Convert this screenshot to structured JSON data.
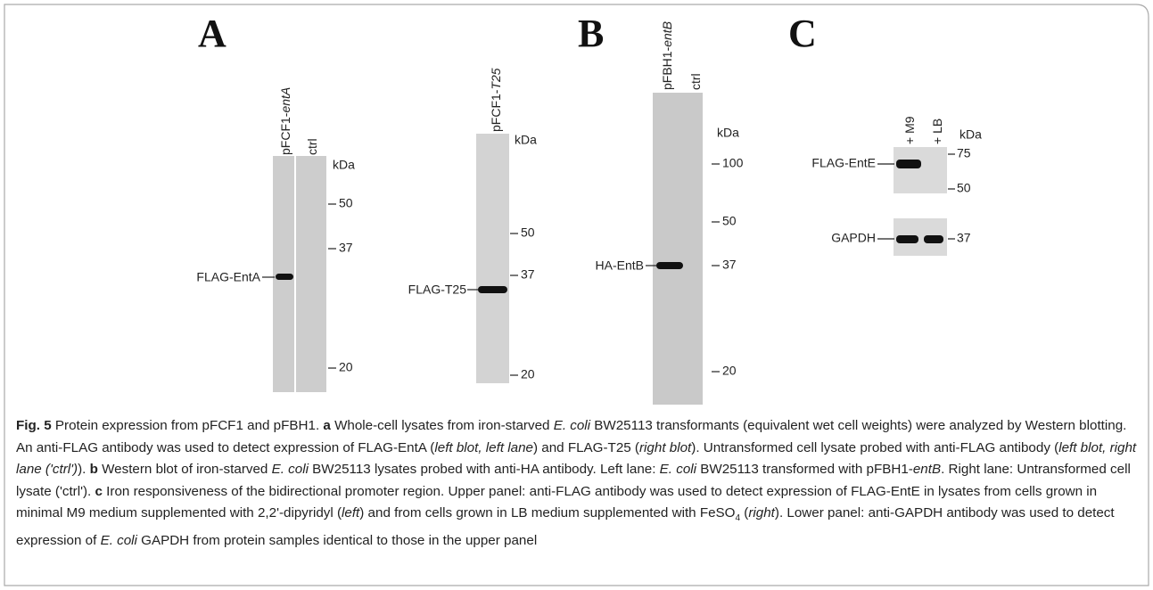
{
  "panel_a": {
    "label": "A",
    "left_blot": {
      "lanes": [
        {
          "parts": [
            "pFCF1-",
            "entA"
          ]
        },
        {
          "parts": [
            "ctrl"
          ]
        }
      ],
      "unit": "kDa",
      "markers": [
        50,
        37,
        20
      ],
      "band": "FLAG-EntA"
    },
    "right_blot": {
      "lanes": [
        {
          "parts": [
            "pFCF1-",
            "T25"
          ]
        }
      ],
      "unit": "kDa",
      "markers": [
        50,
        37,
        20
      ],
      "band": "FLAG-T25"
    }
  },
  "panel_b": {
    "label": "B",
    "blot": {
      "lanes": [
        {
          "parts": [
            "pFBH1-",
            "entB"
          ]
        },
        {
          "parts": [
            "ctrl"
          ]
        }
      ],
      "unit": "kDa",
      "markers": [
        100,
        50,
        37,
        20
      ],
      "band": "HA-EntB"
    }
  },
  "panel_c": {
    "label": "C",
    "upper_blot": {
      "lanes": [
        {
          "parts": [
            "+ M9"
          ]
        },
        {
          "parts": [
            "+ LB"
          ]
        }
      ],
      "unit": "kDa",
      "markers": [
        75,
        50
      ],
      "band": "FLAG-EntE"
    },
    "lower_blot": {
      "markers": [
        37
      ],
      "band": "GAPDH"
    }
  },
  "caption": {
    "segments": [
      {
        "text": "Fig. 5",
        "style": "bold"
      },
      {
        "text": " Protein expression from pFCF1 and pFBH1. "
      },
      {
        "text": "a",
        "style": "bold"
      },
      {
        "text": " Whole-cell lysates from iron-starved "
      },
      {
        "text": "E. coli",
        "style": "italic"
      },
      {
        "text": " BW25113 transformants (equivalent wet cell weights) were analyzed by Western blotting. An anti-FLAG antibody was used to detect expression of FLAG-EntA ("
      },
      {
        "text": "left blot, left lane",
        "style": "italic"
      },
      {
        "text": ") and FLAG-T25 ("
      },
      {
        "text": "right blot",
        "style": "italic"
      },
      {
        "text": "). Untransformed cell lysate probed with anti-FLAG antibody ("
      },
      {
        "text": "left blot, right lane ('ctrl')",
        "style": "italic"
      },
      {
        "text": "). "
      },
      {
        "text": "b",
        "style": "bold"
      },
      {
        "text": " Western blot of iron-starved "
      },
      {
        "text": "E. coli",
        "style": "italic"
      },
      {
        "text": " BW25113 lysates probed with anti-HA antibody. Left lane: "
      },
      {
        "text": "E. coli",
        "style": "italic"
      },
      {
        "text": " BW25113 transformed with pFBH1-"
      },
      {
        "text": "entB",
        "style": "italic"
      },
      {
        "text": ". Right lane: Untransformed cell lysate ('ctrl'). "
      },
      {
        "text": "c",
        "style": "bold"
      },
      {
        "text": " Iron responsiveness of the bidirectional promoter region. Upper panel: anti-FLAG antibody was used to detect expression of FLAG-EntE in lysates from cells grown in minimal M9 medium supplemented with 2,2'-dipyridyl ("
      },
      {
        "text": "left",
        "style": "italic"
      },
      {
        "text": ") and from cells grown in LB medium supplemented with FeSO"
      },
      {
        "text": "4",
        "style": "sub"
      },
      {
        "text": " ("
      },
      {
        "text": "right",
        "style": "italic"
      },
      {
        "text": "). Lower panel: anti-GAPDH antibody was used to detect expression of "
      },
      {
        "text": "E. coli",
        "style": "italic"
      },
      {
        "text": " GAPDH from protein samples identical to those in the upper panel"
      }
    ]
  }
}
